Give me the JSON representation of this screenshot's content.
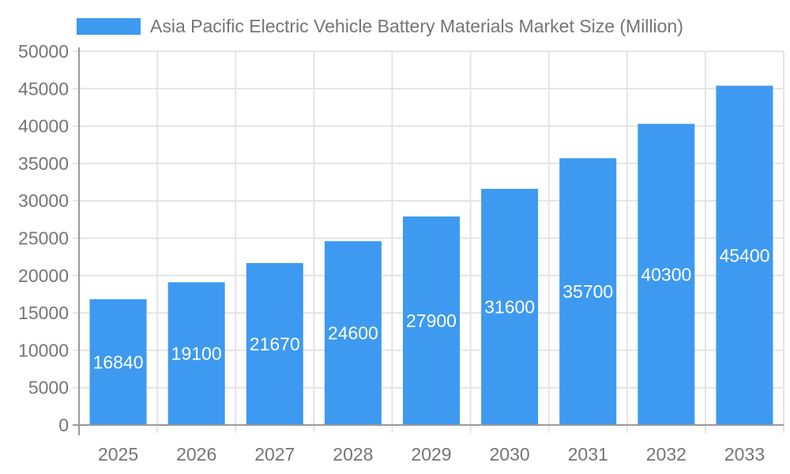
{
  "chart_data": {
    "type": "bar",
    "title": "Asia Pacific Electric Vehicle Battery Materials Market Size (Million)",
    "categories": [
      "2025",
      "2026",
      "2027",
      "2028",
      "2029",
      "2030",
      "2031",
      "2032",
      "2033"
    ],
    "values": [
      16840,
      19100,
      21670,
      24600,
      27900,
      31600,
      35700,
      40300,
      45400
    ],
    "xlabel": "",
    "ylabel": "",
    "ylim": [
      0,
      50000
    ],
    "ytick_step": 5000,
    "ytick_labels": [
      "0",
      "5000",
      "10000",
      "15000",
      "20000",
      "25000",
      "30000",
      "35000",
      "40000",
      "45000",
      "50000"
    ],
    "grid": true,
    "legend_position": "top-left",
    "colors": {
      "bar": "#3D9AF0",
      "value_label": "#ffffff",
      "axis": "#999999",
      "grid": "#e4e4e4",
      "text": "#757575"
    }
  }
}
